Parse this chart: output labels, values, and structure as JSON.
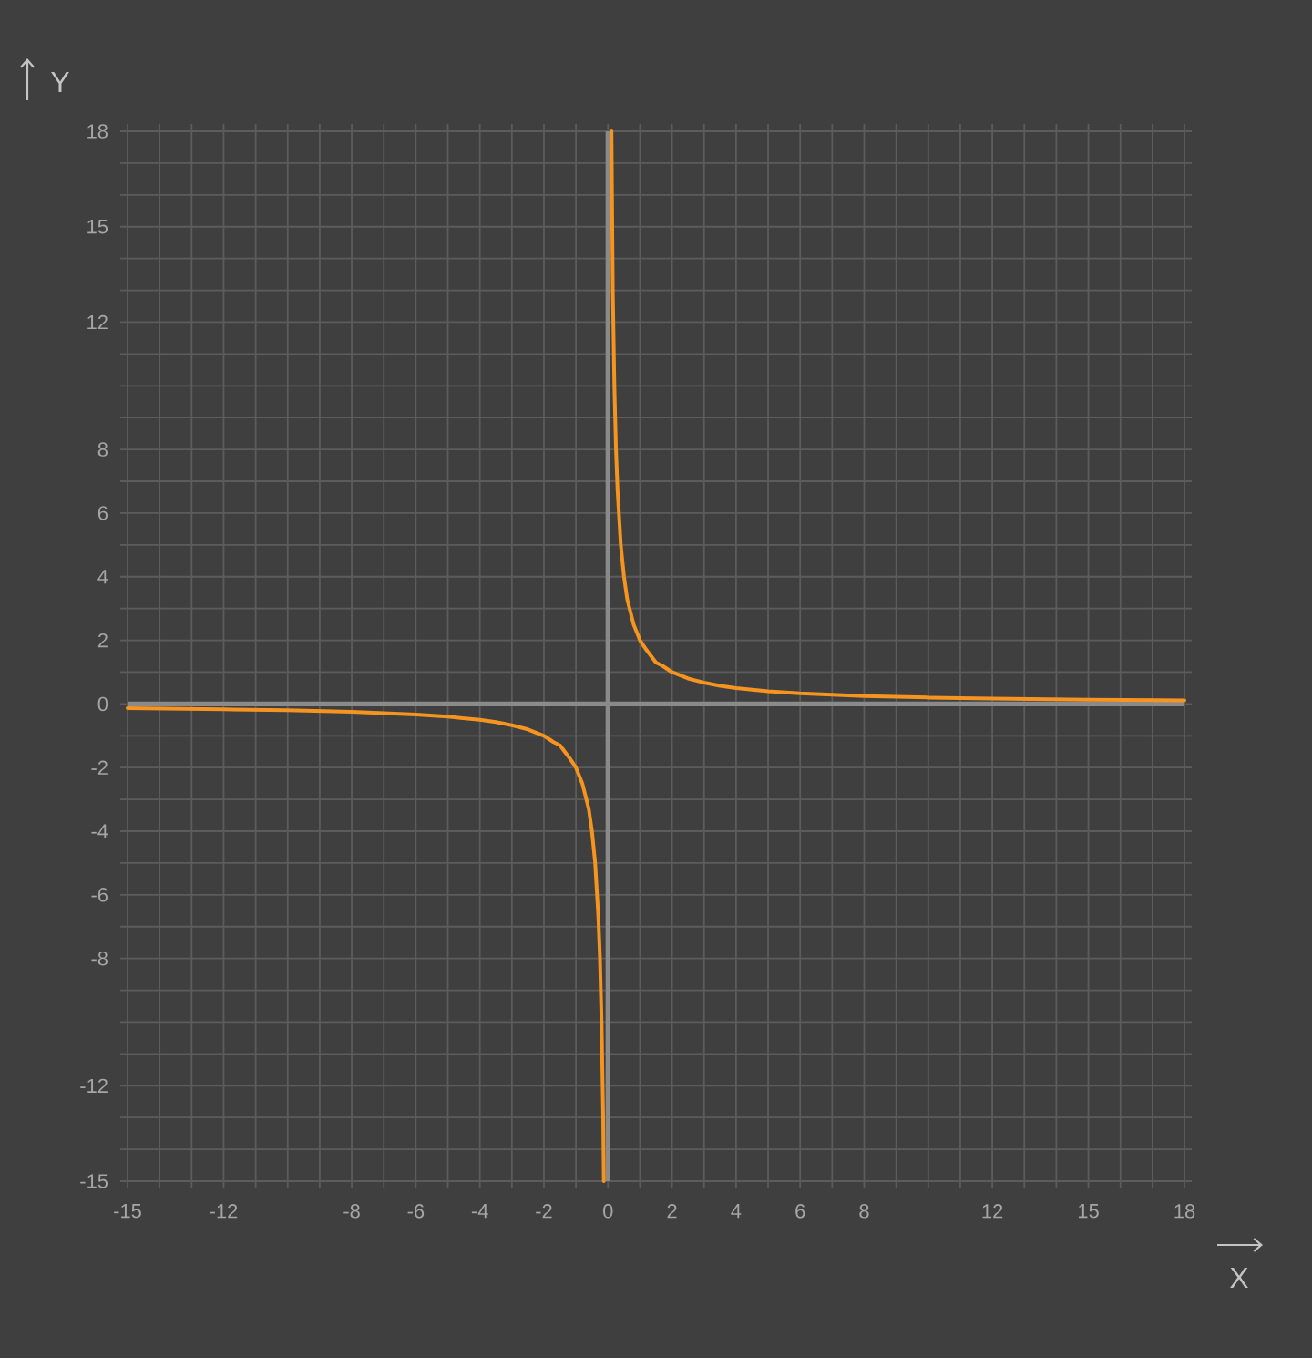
{
  "chart_data": {
    "type": "line",
    "xlabel": "X",
    "ylabel": "Y",
    "xlim": [
      -15,
      18
    ],
    "ylim": [
      -15,
      18
    ],
    "xticks": [
      -15,
      {
        "value": -14,
        "label": null
      },
      {
        "value": -13,
        "label": null
      },
      -12,
      {
        "value": -11,
        "label": null
      },
      {
        "value": -10,
        "label": null
      },
      {
        "value": -9,
        "label": null
      },
      -8,
      {
        "value": -7,
        "label": null
      },
      -6,
      {
        "value": -5,
        "label": null
      },
      -4,
      {
        "value": -3,
        "label": null
      },
      -2,
      {
        "value": -1,
        "label": null
      },
      0,
      {
        "value": 1,
        "label": null
      },
      2,
      {
        "value": 3,
        "label": null
      },
      4,
      {
        "value": 5,
        "label": null
      },
      6,
      {
        "value": 7,
        "label": null
      },
      8,
      {
        "value": 9,
        "label": null
      },
      {
        "value": 10,
        "label": null
      },
      {
        "value": 11,
        "label": null
      },
      12,
      {
        "value": 13,
        "label": null
      },
      {
        "value": 14,
        "label": null
      },
      15,
      {
        "value": 16,
        "label": null
      },
      {
        "value": 17,
        "label": null
      },
      18
    ],
    "yticks": [
      -15,
      {
        "value": -14,
        "label": null
      },
      {
        "value": -13,
        "label": null
      },
      -12,
      {
        "value": -11,
        "label": null
      },
      {
        "value": -10,
        "label": null
      },
      {
        "value": -9,
        "label": null
      },
      -8,
      {
        "value": -7,
        "label": null
      },
      -6,
      {
        "value": -5,
        "label": null
      },
      -4,
      {
        "value": -3,
        "label": null
      },
      -2,
      {
        "value": -1,
        "label": null
      },
      0,
      {
        "value": 1,
        "label": null
      },
      2,
      {
        "value": 3,
        "label": null
      },
      4,
      {
        "value": 5,
        "label": null
      },
      6,
      {
        "value": 7,
        "label": null
      },
      8,
      {
        "value": 9,
        "label": null
      },
      {
        "value": 10,
        "label": null
      },
      {
        "value": 11,
        "label": null
      },
      12,
      {
        "value": 13,
        "label": null
      },
      {
        "value": 14,
        "label": null
      },
      15,
      {
        "value": 16,
        "label": null
      },
      {
        "value": 17,
        "label": null
      },
      18
    ],
    "grid": true,
    "series": [
      {
        "color": "#f5951f",
        "x": [
          -15,
          -12,
          -10,
          -8,
          -6,
          -5,
          -4,
          -3.5,
          -3,
          -2.5,
          -2,
          -1.7,
          -1.5,
          -1.2,
          -1,
          -0.8,
          -0.7,
          -0.6,
          -0.5,
          -0.4,
          -0.3,
          -0.25,
          -0.2,
          -0.15,
          -0.13
        ],
        "values": [
          -0.13,
          -0.17,
          -0.2,
          -0.25,
          -0.33,
          -0.4,
          -0.5,
          -0.57,
          -0.67,
          -0.8,
          -1,
          -1.2,
          -1.3,
          -1.7,
          -2,
          -2.5,
          -2.9,
          -3.3,
          -4,
          -5,
          -6.7,
          -8,
          -10,
          -13,
          -15
        ]
      },
      {
        "color": "#f5951f",
        "x": [
          0.11,
          0.15,
          0.2,
          0.25,
          0.3,
          0.4,
          0.5,
          0.6,
          0.7,
          0.8,
          1,
          1.2,
          1.5,
          1.7,
          2,
          2.5,
          3,
          3.5,
          4,
          5,
          6,
          8,
          10,
          12,
          15,
          18
        ],
        "values": [
          18,
          13,
          10,
          8,
          6.7,
          5,
          4,
          3.3,
          2.9,
          2.5,
          2,
          1.7,
          1.3,
          1.2,
          1,
          0.8,
          0.67,
          0.57,
          0.5,
          0.4,
          0.33,
          0.25,
          0.2,
          0.17,
          0.13,
          0.11
        ]
      }
    ]
  }
}
